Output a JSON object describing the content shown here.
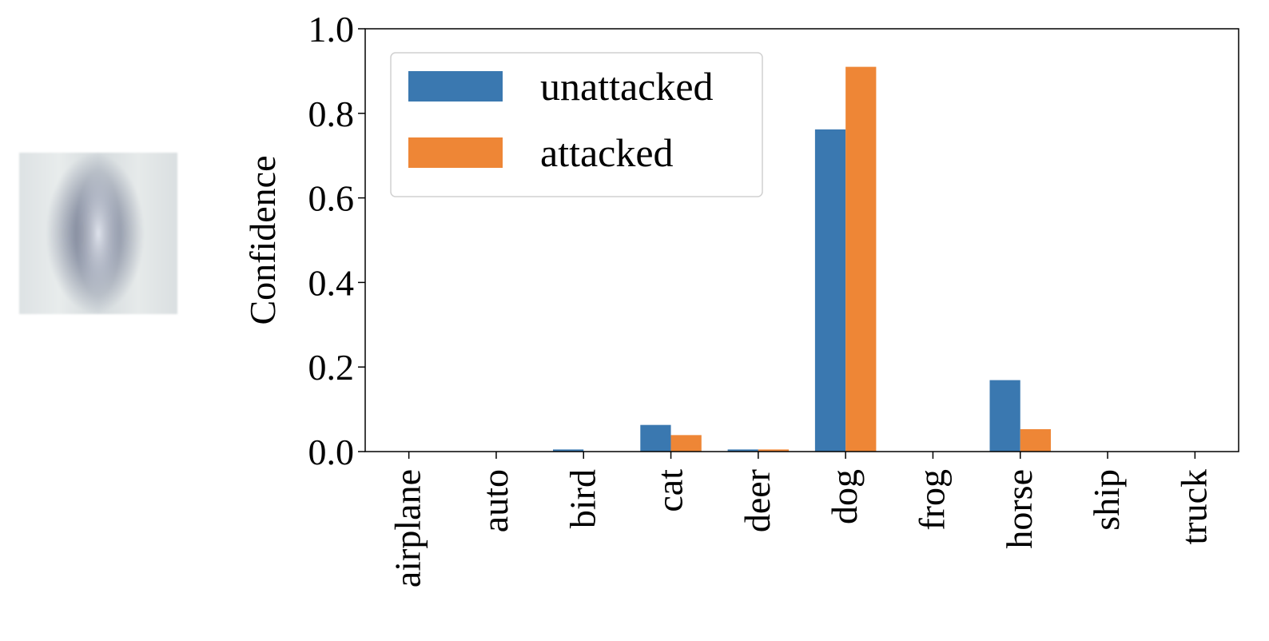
{
  "thumbnail": {
    "icon": "input-image-thumbnail"
  },
  "chart_data": {
    "type": "bar",
    "categories": [
      "airplane",
      "auto",
      "bird",
      "cat",
      "deer",
      "dog",
      "frog",
      "horse",
      "ship",
      "truck"
    ],
    "series": [
      {
        "name": "unattacked",
        "color": "#3a78b0",
        "values": [
          0.0,
          0.0,
          0.005,
          0.063,
          0.005,
          0.762,
          0.0,
          0.169,
          0.0,
          0.0
        ]
      },
      {
        "name": "attacked",
        "color": "#ee8636",
        "values": [
          0.0,
          0.0,
          0.0,
          0.039,
          0.005,
          0.91,
          0.0,
          0.053,
          0.0,
          0.0
        ]
      }
    ],
    "ylabel": "Confidence",
    "ylim": [
      0.0,
      1.0
    ],
    "yticks": [
      0.0,
      0.2,
      0.4,
      0.6,
      0.8,
      1.0
    ],
    "ytick_labels": [
      "0.0",
      "0.2",
      "0.4",
      "0.6",
      "0.8",
      "1.0"
    ],
    "legend": {
      "placement": "top-left"
    },
    "grid": false
  }
}
